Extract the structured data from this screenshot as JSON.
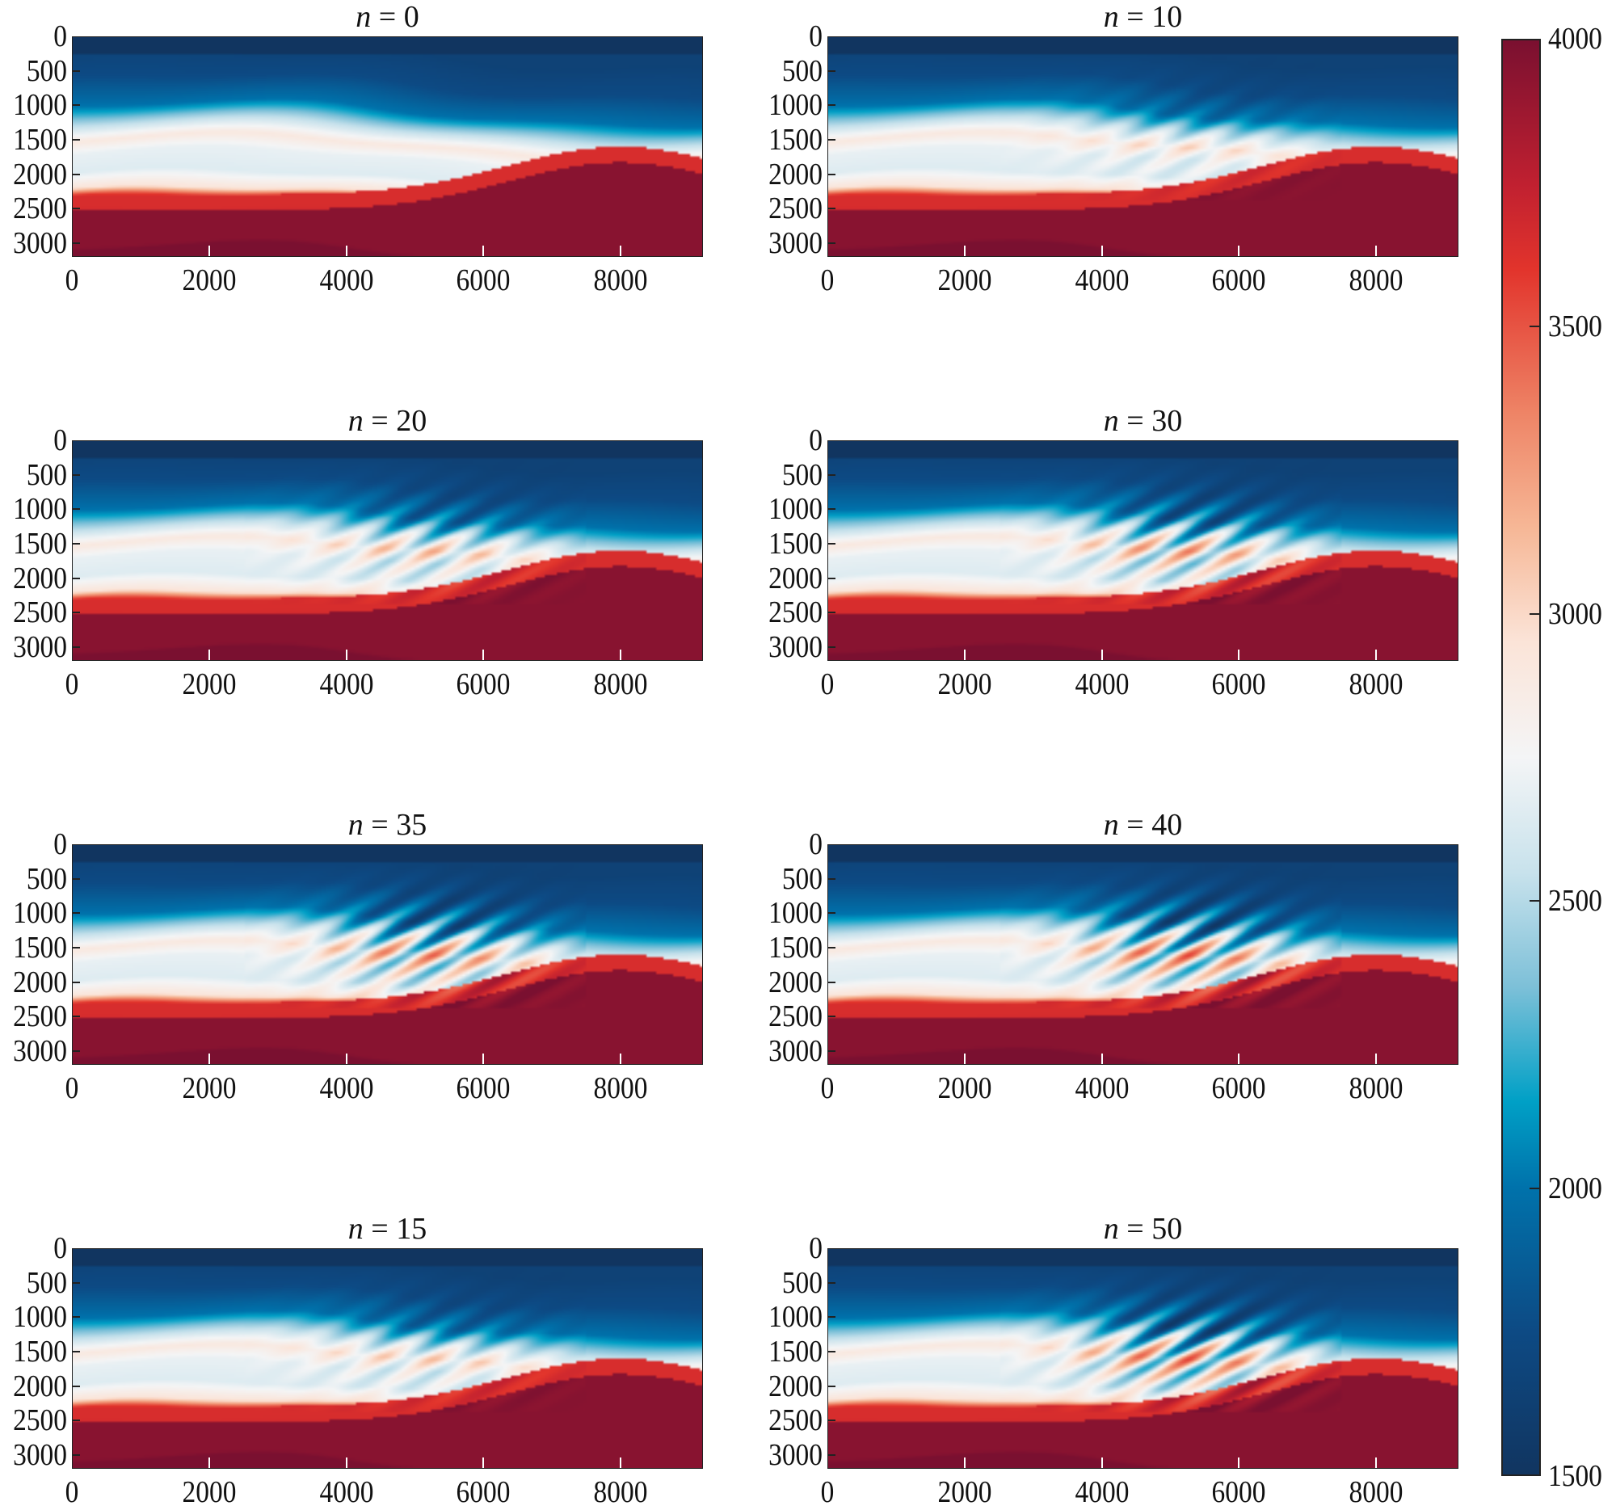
{
  "chart_data": {
    "type": "heatmap",
    "panels": [
      {
        "var": "n",
        "eq": "=",
        "value": "0"
      },
      {
        "var": "n",
        "eq": "=",
        "value": "10"
      },
      {
        "var": "n",
        "eq": "=",
        "value": "20"
      },
      {
        "var": "n",
        "eq": "=",
        "value": "30"
      },
      {
        "var": "n",
        "eq": "=",
        "value": "35"
      },
      {
        "var": "n",
        "eq": "=",
        "value": "40"
      },
      {
        "var": "n",
        "eq": "=",
        "value": "15"
      },
      {
        "var": "n",
        "eq": "=",
        "value": "50"
      }
    ],
    "grid_layout": {
      "rows": 4,
      "cols": 2
    },
    "xlim": [
      0,
      9200
    ],
    "ylim": [
      3200,
      0
    ],
    "x_ticks": [
      "0",
      "2000",
      "4000",
      "6000",
      "8000"
    ],
    "y_ticks": [
      "0",
      "500",
      "1000",
      "1500",
      "2000",
      "2500",
      "3000"
    ],
    "xlabel": "",
    "ylabel": "",
    "colorbar": {
      "range": [
        1500,
        4000
      ],
      "ticks": [
        "1500",
        "2000",
        "2500",
        "3000",
        "3500",
        "4000"
      ],
      "colormap": "RdBu_r",
      "colors": {
        "low": "#113560",
        "mid": "#f4f5f6",
        "high": "#7a1030"
      }
    },
    "grid": false
  }
}
